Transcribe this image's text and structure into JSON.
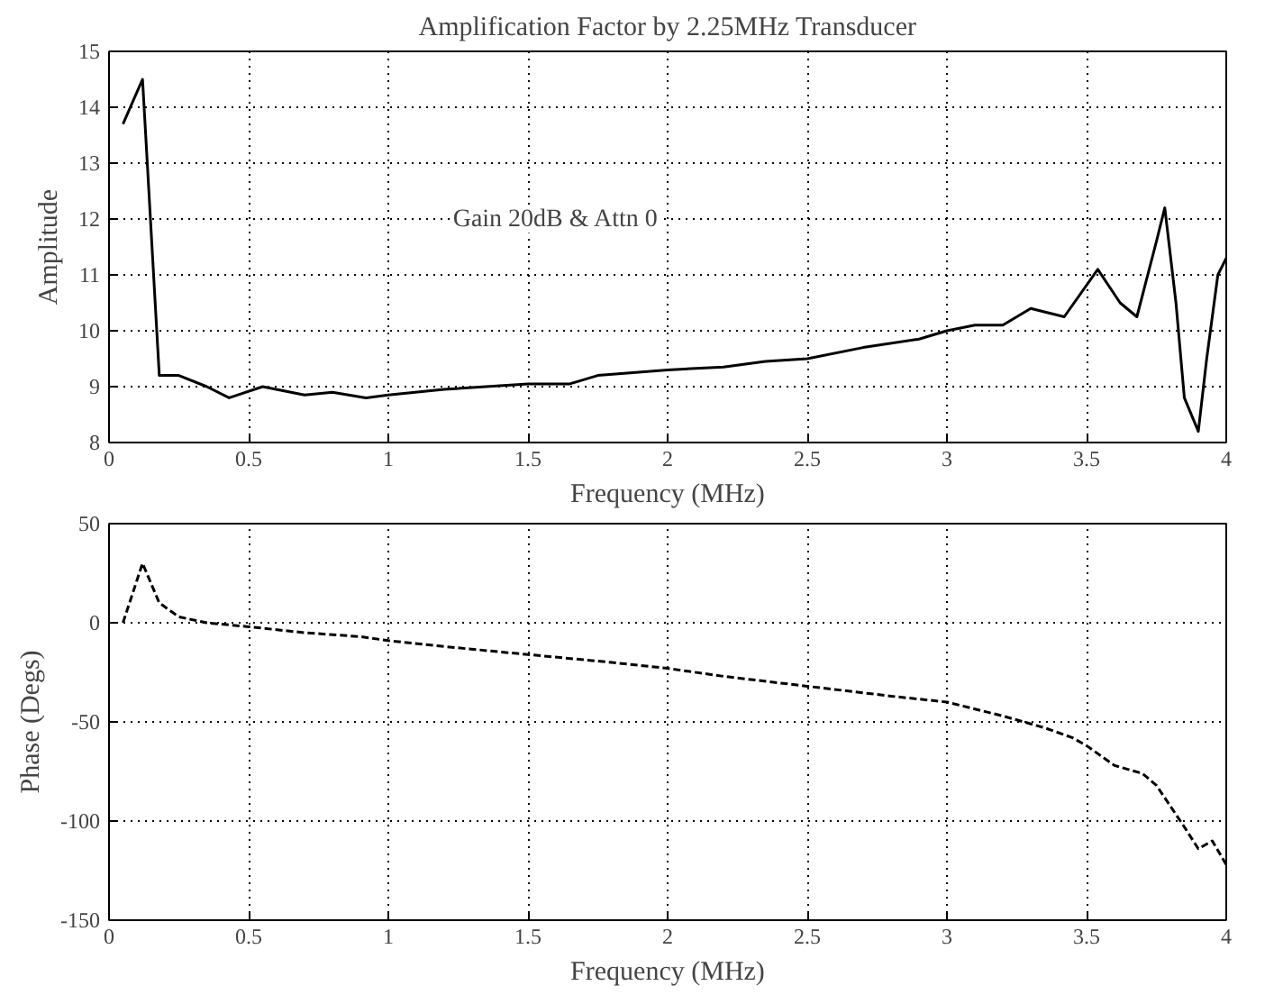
{
  "chart_data": [
    {
      "type": "line",
      "title": "Amplification Factor by 2.25MHz Transducer",
      "xlabel": "Frequency (MHz)",
      "ylabel": "Amplitude",
      "annotations": [
        "Gain 20dB & Attn 0"
      ],
      "xlim": [
        0,
        4
      ],
      "ylim": [
        8,
        15
      ],
      "xticks": [
        0,
        0.5,
        1,
        1.5,
        2,
        2.5,
        3,
        3.5,
        4
      ],
      "yticks": [
        8,
        9,
        10,
        11,
        12,
        13,
        14,
        15
      ],
      "grid": true,
      "line_style": "solid",
      "series": [
        {
          "color": "#000000",
          "x": [
            0.05,
            0.12,
            0.18,
            0.25,
            0.35,
            0.43,
            0.55,
            0.7,
            0.8,
            0.92,
            1.0,
            1.2,
            1.5,
            1.65,
            1.75,
            2.0,
            2.2,
            2.35,
            2.5,
            2.7,
            2.9,
            3.0,
            3.1,
            3.2,
            3.3,
            3.42,
            3.54,
            3.62,
            3.68,
            3.75,
            3.78,
            3.82,
            3.85,
            3.9,
            3.93,
            3.97,
            4.0
          ],
          "values": [
            13.7,
            14.5,
            9.2,
            9.2,
            9.0,
            8.8,
            9.0,
            8.85,
            8.9,
            8.8,
            8.85,
            8.95,
            9.05,
            9.05,
            9.2,
            9.3,
            9.35,
            9.45,
            9.5,
            9.7,
            9.85,
            10.0,
            10.1,
            10.1,
            10.4,
            10.25,
            11.1,
            10.5,
            10.25,
            11.6,
            12.2,
            10.5,
            8.8,
            8.2,
            9.5,
            11.0,
            11.3
          ]
        }
      ]
    },
    {
      "type": "line",
      "xlabel": "Frequency (MHz)",
      "ylabel": "Phase (Degs)",
      "xlim": [
        0,
        4
      ],
      "ylim": [
        -150,
        50
      ],
      "xticks": [
        0,
        0.5,
        1,
        1.5,
        2,
        2.5,
        3,
        3.5,
        4
      ],
      "yticks": [
        -150,
        -100,
        -50,
        0,
        50
      ],
      "grid": true,
      "line_style": "dashed",
      "series": [
        {
          "color": "#000000",
          "x": [
            0.05,
            0.12,
            0.18,
            0.25,
            0.35,
            0.5,
            0.7,
            0.9,
            1.0,
            1.2,
            1.5,
            1.8,
            2.0,
            2.2,
            2.5,
            2.8,
            3.0,
            3.2,
            3.35,
            3.45,
            3.5,
            3.6,
            3.7,
            3.75,
            3.85,
            3.9,
            3.95,
            4.0
          ],
          "values": [
            0,
            30,
            10,
            3,
            0,
            -2,
            -5,
            -7,
            -9,
            -12,
            -16,
            -20,
            -23,
            -27,
            -32,
            -37,
            -40,
            -47,
            -53,
            -58,
            -62,
            -72,
            -76,
            -82,
            -103,
            -114,
            -110,
            -122
          ]
        }
      ]
    }
  ]
}
